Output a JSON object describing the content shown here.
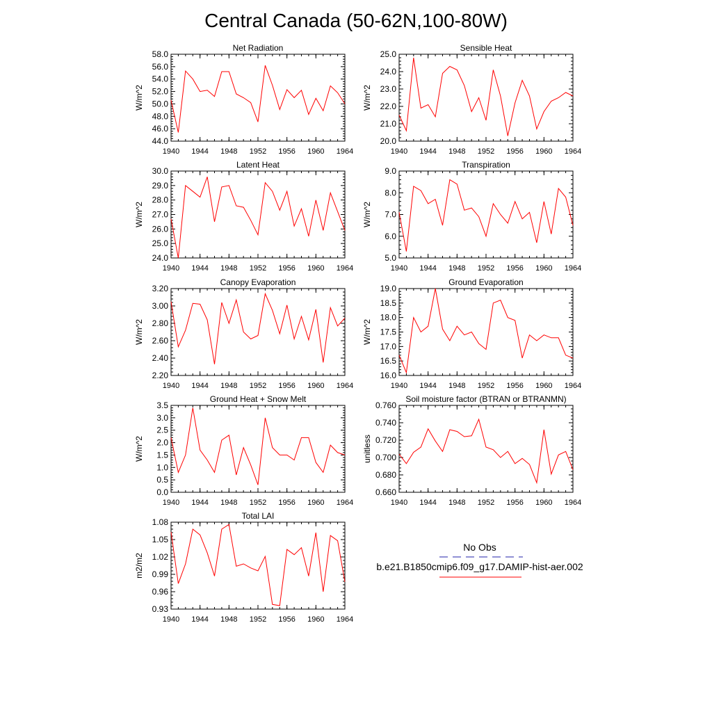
{
  "page": {
    "title": "Central Canada (50-62N,100-80W)"
  },
  "legend": {
    "obs_label": "No Obs",
    "obs_color": "#2222aa",
    "model_label": "b.e21.B1850cmip6.f09_g17.DAMIP-hist-aer.002",
    "model_color": "#ff0000"
  },
  "chart_data": [
    {
      "type": "line",
      "title": "Net Radiation",
      "ylabel": "W/m^2",
      "x": [
        1940,
        1941,
        1942,
        1943,
        1944,
        1945,
        1946,
        1947,
        1948,
        1949,
        1950,
        1951,
        1952,
        1953,
        1954,
        1955,
        1956,
        1957,
        1958,
        1959,
        1960,
        1961,
        1962,
        1963,
        1964
      ],
      "series": [
        {
          "color": "#ff0000",
          "values": [
            50.6,
            45.4,
            55.3,
            54.0,
            52.0,
            52.2,
            51.2,
            55.2,
            55.2,
            51.6,
            51.0,
            50.2,
            47.1,
            56.2,
            53.0,
            49.1,
            52.3,
            51.0,
            52.2,
            48.3,
            50.9,
            48.9,
            52.9,
            51.8,
            50.0
          ]
        }
      ],
      "xlim": [
        1940,
        1964
      ],
      "xticks": [
        1940,
        1944,
        1948,
        1952,
        1956,
        1960,
        1964
      ],
      "ylim": [
        44.0,
        58.0
      ],
      "yticks": [
        "58.0",
        "56.0",
        "54.0",
        "52.0",
        "50.0",
        "48.0",
        "46.0",
        "44.0"
      ]
    },
    {
      "type": "line",
      "title": "Sensible Heat",
      "ylabel": "W/m^2",
      "x": [
        1940,
        1941,
        1942,
        1943,
        1944,
        1945,
        1946,
        1947,
        1948,
        1949,
        1950,
        1951,
        1952,
        1953,
        1954,
        1955,
        1956,
        1957,
        1958,
        1959,
        1960,
        1961,
        1962,
        1963,
        1964
      ],
      "series": [
        {
          "color": "#ff0000",
          "values": [
            21.5,
            20.6,
            24.8,
            21.9,
            22.1,
            21.4,
            23.9,
            24.3,
            24.1,
            23.2,
            21.7,
            22.5,
            21.2,
            24.1,
            22.6,
            20.3,
            22.2,
            23.5,
            22.6,
            20.7,
            21.7,
            22.3,
            22.5,
            22.8,
            22.6
          ]
        }
      ],
      "xlim": [
        1940,
        1964
      ],
      "xticks": [
        1940,
        1944,
        1948,
        1952,
        1956,
        1960,
        1964
      ],
      "ylim": [
        20.0,
        25.0
      ],
      "yticks": [
        "25.0",
        "24.0",
        "23.0",
        "22.0",
        "21.0",
        "20.0"
      ]
    },
    {
      "type": "line",
      "title": "Latent Heat",
      "ylabel": "W/m^2",
      "x": [
        1940,
        1941,
        1942,
        1943,
        1944,
        1945,
        1946,
        1947,
        1948,
        1949,
        1950,
        1951,
        1952,
        1953,
        1954,
        1955,
        1956,
        1957,
        1958,
        1959,
        1960,
        1961,
        1962,
        1963,
        1964
      ],
      "series": [
        {
          "color": "#ff0000",
          "values": [
            26.7,
            24.0,
            29.0,
            28.6,
            28.2,
            29.6,
            26.5,
            28.9,
            29.0,
            27.6,
            27.5,
            26.6,
            25.6,
            29.2,
            28.6,
            27.3,
            28.6,
            26.2,
            27.4,
            25.5,
            28.0,
            25.9,
            28.5,
            27.2,
            25.9
          ]
        }
      ],
      "xlim": [
        1940,
        1964
      ],
      "xticks": [
        1940,
        1944,
        1948,
        1952,
        1956,
        1960,
        1964
      ],
      "ylim": [
        24.0,
        30.0
      ],
      "yticks": [
        "30.0",
        "29.0",
        "28.0",
        "27.0",
        "26.0",
        "25.0",
        "24.0"
      ]
    },
    {
      "type": "line",
      "title": "Transpiration",
      "ylabel": "W/m^2",
      "x": [
        1940,
        1941,
        1942,
        1943,
        1944,
        1945,
        1946,
        1947,
        1948,
        1949,
        1950,
        1951,
        1952,
        1953,
        1954,
        1955,
        1956,
        1957,
        1958,
        1959,
        1960,
        1961,
        1962,
        1963,
        1964
      ],
      "series": [
        {
          "color": "#ff0000",
          "values": [
            7.1,
            5.3,
            8.3,
            8.1,
            7.5,
            7.7,
            6.5,
            8.6,
            8.4,
            7.2,
            7.3,
            6.9,
            6.0,
            7.5,
            7.0,
            6.6,
            7.6,
            6.8,
            7.1,
            5.7,
            7.6,
            6.1,
            8.2,
            7.8,
            6.5
          ]
        }
      ],
      "xlim": [
        1940,
        1964
      ],
      "xticks": [
        1940,
        1944,
        1948,
        1952,
        1956,
        1960,
        1964
      ],
      "ylim": [
        5.0,
        9.0
      ],
      "yticks": [
        "9.0",
        "8.0",
        "7.0",
        "6.0",
        "5.0"
      ]
    },
    {
      "type": "line",
      "title": "Canopy Evaporation",
      "ylabel": "W/m^2",
      "x": [
        1940,
        1941,
        1942,
        1943,
        1944,
        1945,
        1946,
        1947,
        1948,
        1949,
        1950,
        1951,
        1952,
        1953,
        1954,
        1955,
        1956,
        1957,
        1958,
        1959,
        1960,
        1961,
        1962,
        1963,
        1964
      ],
      "series": [
        {
          "color": "#ff0000",
          "values": [
            3.05,
            2.53,
            2.72,
            3.03,
            3.02,
            2.84,
            2.33,
            3.04,
            2.8,
            3.07,
            2.7,
            2.62,
            2.66,
            3.14,
            2.95,
            2.68,
            3.01,
            2.62,
            2.88,
            2.61,
            2.96,
            2.35,
            2.98,
            2.77,
            2.86
          ]
        }
      ],
      "xlim": [
        1940,
        1964
      ],
      "xticks": [
        1940,
        1944,
        1948,
        1952,
        1956,
        1960,
        1964
      ],
      "ylim": [
        2.2,
        3.2
      ],
      "yticks": [
        "3.20",
        "3.00",
        "2.80",
        "2.60",
        "2.40",
        "2.20"
      ]
    },
    {
      "type": "line",
      "title": "Ground Evaporation",
      "ylabel": "W/m^2",
      "x": [
        1940,
        1941,
        1942,
        1943,
        1944,
        1945,
        1946,
        1947,
        1948,
        1949,
        1950,
        1951,
        1952,
        1953,
        1954,
        1955,
        1956,
        1957,
        1958,
        1959,
        1960,
        1961,
        1962,
        1963,
        1964
      ],
      "series": [
        {
          "color": "#ff0000",
          "values": [
            16.7,
            16.1,
            18.0,
            17.5,
            17.7,
            19.0,
            17.6,
            17.2,
            17.7,
            17.4,
            17.5,
            17.1,
            16.9,
            18.5,
            18.6,
            18.0,
            17.9,
            16.6,
            17.4,
            17.2,
            17.4,
            17.3,
            17.3,
            16.7,
            16.6
          ]
        }
      ],
      "xlim": [
        1940,
        1964
      ],
      "xticks": [
        1940,
        1944,
        1948,
        1952,
        1956,
        1960,
        1964
      ],
      "ylim": [
        16.0,
        19.0
      ],
      "yticks": [
        "19.0",
        "18.5",
        "18.0",
        "17.5",
        "17.0",
        "16.5",
        "16.0"
      ]
    },
    {
      "type": "line",
      "title": "Ground Heat + Snow Melt",
      "ylabel": "W/m^2",
      "x": [
        1940,
        1941,
        1942,
        1943,
        1944,
        1945,
        1946,
        1947,
        1948,
        1949,
        1950,
        1951,
        1952,
        1953,
        1954,
        1955,
        1956,
        1957,
        1958,
        1959,
        1960,
        1961,
        1962,
        1963,
        1964
      ],
      "series": [
        {
          "color": "#ff0000",
          "values": [
            2.2,
            0.8,
            1.5,
            3.4,
            1.7,
            1.3,
            0.8,
            2.1,
            2.3,
            0.7,
            1.8,
            1.1,
            0.3,
            3.0,
            1.8,
            1.5,
            1.5,
            1.3,
            2.2,
            2.2,
            1.2,
            0.8,
            1.9,
            1.6,
            1.5
          ]
        }
      ],
      "xlim": [
        1940,
        1964
      ],
      "xticks": [
        1940,
        1944,
        1948,
        1952,
        1956,
        1960,
        1964
      ],
      "ylim": [
        0.0,
        3.5
      ],
      "yticks": [
        "3.5",
        "3.0",
        "2.5",
        "2.0",
        "1.5",
        "1.0",
        "0.5",
        "0.0"
      ]
    },
    {
      "type": "line",
      "title": "Soil moisture factor (BTRAN or BTRANMN)",
      "ylabel": "unitless",
      "x": [
        1940,
        1941,
        1942,
        1943,
        1944,
        1945,
        1946,
        1947,
        1948,
        1949,
        1950,
        1951,
        1952,
        1953,
        1954,
        1955,
        1956,
        1957,
        1958,
        1959,
        1960,
        1961,
        1962,
        1963,
        1964
      ],
      "series": [
        {
          "color": "#ff0000",
          "values": [
            0.704,
            0.693,
            0.706,
            0.712,
            0.733,
            0.719,
            0.707,
            0.732,
            0.73,
            0.724,
            0.725,
            0.744,
            0.712,
            0.709,
            0.7,
            0.707,
            0.693,
            0.699,
            0.692,
            0.671,
            0.732,
            0.681,
            0.703,
            0.707,
            0.686
          ]
        }
      ],
      "xlim": [
        1940,
        1964
      ],
      "xticks": [
        1940,
        1944,
        1948,
        1952,
        1956,
        1960,
        1964
      ],
      "ylim": [
        0.66,
        0.76
      ],
      "yticks": [
        "0.760",
        "0.740",
        "0.720",
        "0.700",
        "0.680",
        "0.660"
      ]
    },
    {
      "type": "line",
      "title": "Total LAI",
      "ylabel": "m2/m2",
      "x": [
        1940,
        1941,
        1942,
        1943,
        1944,
        1945,
        1946,
        1947,
        1948,
        1949,
        1950,
        1951,
        1952,
        1953,
        1954,
        1955,
        1956,
        1957,
        1958,
        1959,
        1960,
        1961,
        1962,
        1963,
        1964
      ],
      "series": [
        {
          "color": "#ff0000",
          "values": [
            1.063,
            0.974,
            1.008,
            1.068,
            1.058,
            1.027,
            0.987,
            1.068,
            1.076,
            1.004,
            1.008,
            1.001,
            0.996,
            1.021,
            0.938,
            0.936,
            1.033,
            1.024,
            1.036,
            0.987,
            1.062,
            0.96,
            1.057,
            1.048,
            0.977
          ]
        }
      ],
      "xlim": [
        1940,
        1964
      ],
      "xticks": [
        1940,
        1944,
        1948,
        1952,
        1956,
        1960,
        1964
      ],
      "ylim": [
        0.93,
        1.08
      ],
      "yticks": [
        "1.08",
        "1.05",
        "1.02",
        "0.99",
        "0.96",
        "0.93"
      ]
    }
  ]
}
